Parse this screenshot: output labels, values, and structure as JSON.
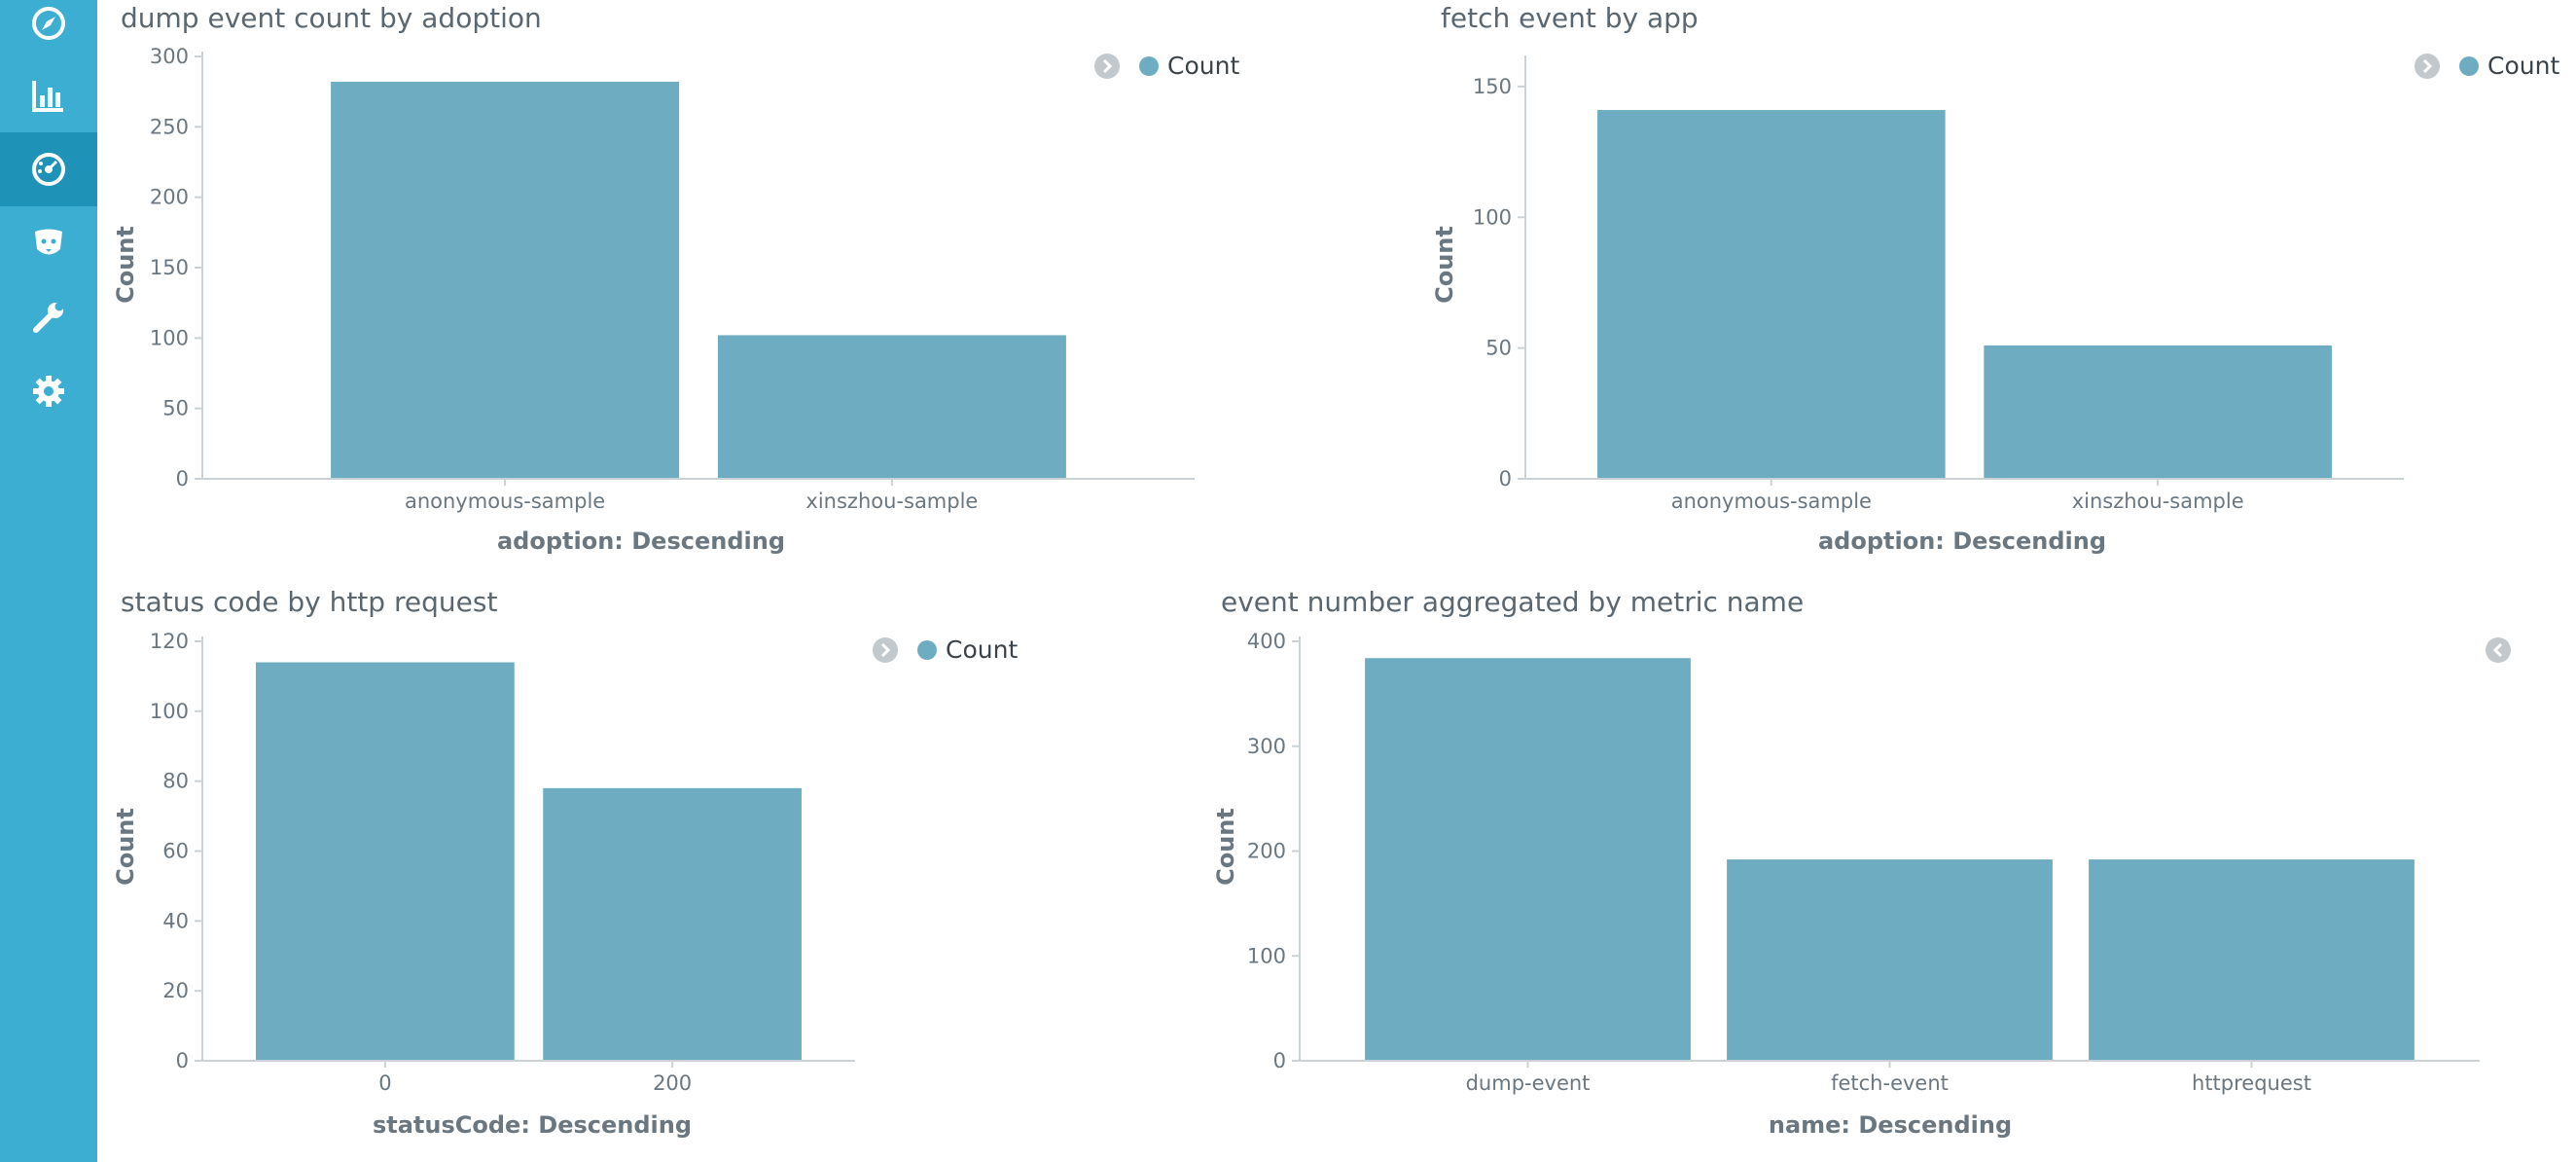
{
  "sidebar": {
    "items": [
      {
        "icon": "compass-icon"
      },
      {
        "icon": "bar-chart-icon"
      },
      {
        "icon": "dashboard-icon",
        "active": true
      },
      {
        "icon": "timelion-icon"
      },
      {
        "icon": "wrench-icon"
      },
      {
        "icon": "gear-icon"
      }
    ],
    "colors": {
      "background": "#3caed2",
      "active": "#1f92b8"
    }
  },
  "colors": {
    "bar": "#6eacc1",
    "legend_toggle": "#c2c8cc",
    "axis_line": "#cbd2d6"
  },
  "panels": [
    {
      "title": "dump event count by adoption",
      "legend": {
        "label": "Count",
        "toggle": "collapse"
      }
    },
    {
      "title": "fetch event by app",
      "legend": {
        "label": "Count",
        "toggle": "collapse"
      }
    },
    {
      "title": "status code by http request",
      "legend": {
        "label": "Count",
        "toggle": "collapse"
      }
    },
    {
      "title": "event number aggregated by metric name",
      "legend": {
        "label": "",
        "toggle": "expand"
      }
    }
  ],
  "chart_data": [
    {
      "type": "bar",
      "title": "dump event count by adoption",
      "categories": [
        "anonymous-sample",
        "xinszhou-sample"
      ],
      "values": [
        282,
        102
      ],
      "xlabel": "adoption: Descending",
      "ylabel": "Count",
      "ylim": [
        0,
        300
      ],
      "yticks": [
        0,
        50,
        100,
        150,
        200,
        250,
        300
      ],
      "legend": [
        "Count"
      ],
      "legend_position": "top-right",
      "grid": false
    },
    {
      "type": "bar",
      "title": "fetch event by app",
      "categories": [
        "anonymous-sample",
        "xinszhou-sample"
      ],
      "values": [
        141,
        51
      ],
      "xlabel": "adoption: Descending",
      "ylabel": "Count",
      "ylim": [
        0,
        160
      ],
      "yticks": [
        0,
        50,
        100,
        150
      ],
      "legend": [
        "Count"
      ],
      "legend_position": "top-right",
      "grid": false
    },
    {
      "type": "bar",
      "title": "status code by http request",
      "categories": [
        "0",
        "200"
      ],
      "values": [
        114,
        78
      ],
      "xlabel": "statusCode: Descending",
      "ylabel": "Count",
      "ylim": [
        0,
        120
      ],
      "yticks": [
        0,
        20,
        40,
        60,
        80,
        100,
        120
      ],
      "legend": [
        "Count"
      ],
      "legend_position": "top-right",
      "grid": false
    },
    {
      "type": "bar",
      "title": "event number aggregated by metric name",
      "categories": [
        "dump-event",
        "fetch-event",
        "httprequest"
      ],
      "values": [
        384,
        192,
        192
      ],
      "xlabel": "name: Descending",
      "ylabel": "Count",
      "ylim": [
        0,
        400
      ],
      "yticks": [
        0,
        100,
        200,
        300,
        400
      ],
      "legend": [],
      "legend_position": "collapsed",
      "grid": false
    }
  ]
}
